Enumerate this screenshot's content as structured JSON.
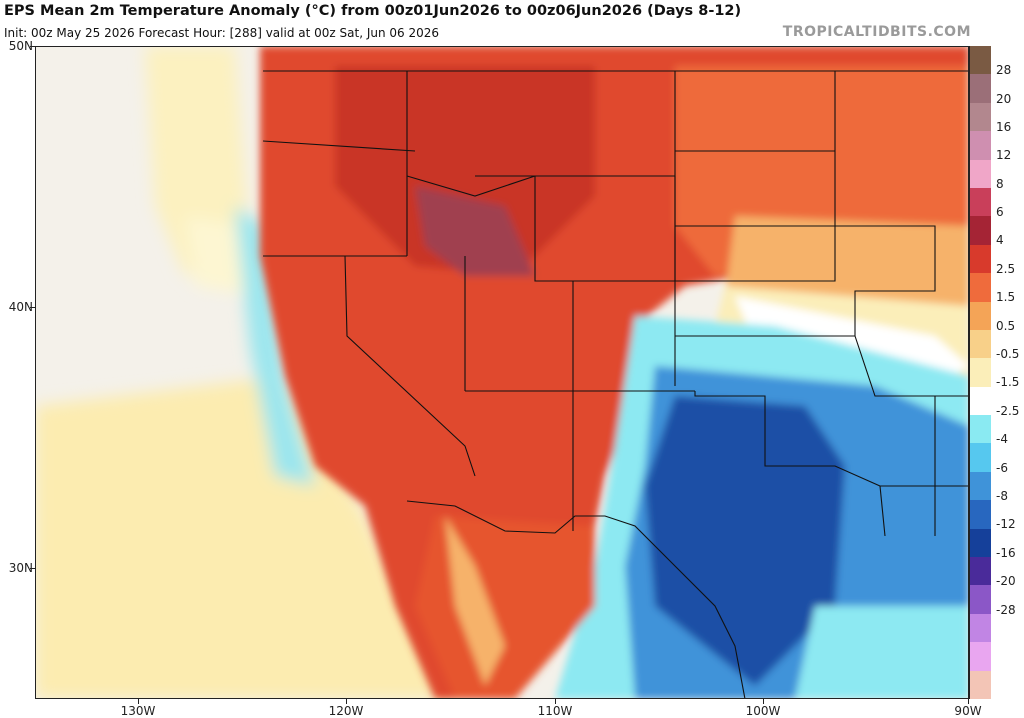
{
  "header": {
    "title": "EPS Mean 2m Temperature Anomaly (°C) from 00z01Jun2026 to 00z06Jun2026 (Days 8-12)",
    "subtitle": "Init: 00z May 25 2026   Forecast Hour: [288]   valid at 00z Sat, Jun 06 2026",
    "brand": "TROPICALTIDBITS.COM"
  },
  "map": {
    "lat_labels": [
      "50N",
      "40N",
      "30N"
    ],
    "lon_labels": [
      "130W",
      "120W",
      "110W",
      "100W",
      "90W"
    ]
  },
  "colorbar": {
    "labels": [
      "28",
      "20",
      "16",
      "12",
      "8",
      "6",
      "4",
      "2.5",
      "1.5",
      "0.5",
      "-0.5",
      "-1.5",
      "-2.5",
      "-4",
      "-6",
      "-8",
      "-12",
      "-16",
      "-20",
      "-28"
    ],
    "colors": [
      "#7a5a43",
      "#9b6f78",
      "#b2878e",
      "#cf8fb0",
      "#f0a6c8",
      "#c93f5a",
      "#a52435",
      "#d83a2c",
      "#ef6b3c",
      "#f4a457",
      "#f8d089",
      "#fbeeb9",
      "#ffffff",
      "#8aeaf2",
      "#56c8ef",
      "#3f93d9",
      "#2867bf",
      "#15409a",
      "#4a2b9a",
      "#8b57c7",
      "#c185e4",
      "#e9a6f0",
      "#f3c5b6"
    ]
  },
  "colors": {
    "ocean_neutral": "#f4f1ea",
    "warm_strong": "#d23a26",
    "warm_moderate": "#ee6a3a",
    "warm_light": "#f6b26a",
    "neutral_warm": "#fce9b0",
    "cool_light": "#8de9f2",
    "cool_moderate": "#3f93d9",
    "cool_strong": "#1b4fa6"
  }
}
